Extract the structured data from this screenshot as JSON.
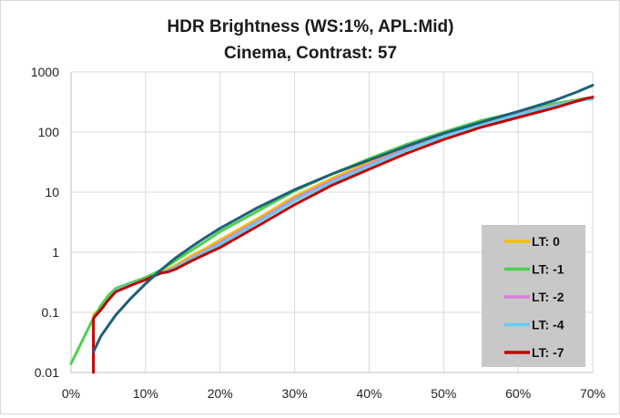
{
  "chart_data": {
    "type": "line",
    "title": "HDR Brightness (WS:1%, APL:Mid)",
    "subtitle": "Cinema, Contrast: 57",
    "x_tick_labels": [
      "0%",
      "10%",
      "20%",
      "30%",
      "40%",
      "50%",
      "60%",
      "70%"
    ],
    "y_tick_labels": [
      "1000",
      "100",
      "10",
      "1",
      "0.1",
      "0.01"
    ],
    "x_unit": "%",
    "xlim": [
      0,
      70
    ],
    "ylim": [
      0.01,
      1000
    ],
    "y_scale": "log",
    "grid": true,
    "legend_position": "bottom-right",
    "series": [
      {
        "name": "LT: 0",
        "color": "#f0c000",
        "x": [
          3,
          4,
          5,
          6,
          8,
          10,
          12,
          14,
          16,
          18,
          20,
          25,
          30,
          35,
          40,
          45,
          50,
          55,
          60,
          65,
          69,
          70
        ],
        "y": [
          0.09,
          0.12,
          0.17,
          0.24,
          0.3,
          0.36,
          0.45,
          0.6,
          0.85,
          1.15,
          1.6,
          3.6,
          8.5,
          17,
          31,
          55,
          95,
          150,
          210,
          290,
          360,
          370
        ]
      },
      {
        "name": "LT: -1",
        "color": "#4dd04d",
        "x": [
          0,
          1,
          2,
          3,
          4,
          5,
          6,
          8,
          10,
          12,
          14,
          16,
          18,
          20,
          25,
          30,
          35,
          40,
          45,
          50,
          55,
          60,
          65,
          69,
          70
        ],
        "y": [
          0.014,
          0.025,
          0.045,
          0.08,
          0.13,
          0.19,
          0.25,
          0.31,
          0.38,
          0.5,
          0.72,
          1.05,
          1.5,
          2.2,
          4.8,
          10.5,
          20,
          36,
          62,
          100,
          155,
          215,
          300,
          360,
          370
        ]
      },
      {
        "name": "LT: -2",
        "color": "#d97fd9",
        "x": [
          3,
          4,
          5,
          6,
          8,
          10,
          12,
          14,
          16,
          18,
          20,
          25,
          30,
          35,
          40,
          45,
          50,
          55,
          60,
          65,
          69,
          70
        ],
        "y": [
          0.08,
          0.11,
          0.16,
          0.23,
          0.29,
          0.35,
          0.44,
          0.56,
          0.78,
          1.05,
          1.45,
          3.3,
          7.8,
          15.5,
          29,
          52,
          88,
          140,
          200,
          280,
          350,
          360
        ]
      },
      {
        "name": "LT: -4",
        "color": "#66ccee",
        "x": [
          3,
          4,
          5,
          6,
          8,
          10,
          12,
          14,
          16,
          18,
          20,
          25,
          30,
          35,
          40,
          45,
          50,
          55,
          60,
          65,
          69,
          70
        ],
        "y": [
          0.08,
          0.11,
          0.16,
          0.23,
          0.29,
          0.35,
          0.44,
          0.55,
          0.75,
          1.0,
          1.35,
          3.1,
          7.2,
          14.5,
          27,
          50,
          85,
          135,
          195,
          275,
          345,
          355
        ]
      },
      {
        "name": "LT: -7",
        "color": "#c00000",
        "x": [
          3,
          3,
          4,
          5,
          6,
          8,
          10,
          12,
          13,
          14,
          16,
          18,
          20,
          25,
          30,
          35,
          40,
          45,
          50,
          55,
          60,
          65,
          69,
          70
        ],
        "y": [
          0.01,
          0.08,
          0.11,
          0.16,
          0.22,
          0.28,
          0.35,
          0.45,
          0.47,
          0.52,
          0.7,
          0.92,
          1.2,
          2.7,
          6.2,
          13,
          24,
          44,
          75,
          120,
          175,
          255,
          360,
          380
        ]
      },
      {
        "name": "",
        "color": "#1f5f7a",
        "x": [
          3,
          4,
          5,
          6,
          8,
          10,
          12,
          14,
          16,
          18,
          20,
          25,
          30,
          35,
          40,
          45,
          50,
          55,
          60,
          65,
          68,
          70
        ],
        "y": [
          0.022,
          0.04,
          0.06,
          0.09,
          0.17,
          0.3,
          0.5,
          0.8,
          1.2,
          1.75,
          2.5,
          5.5,
          11,
          20,
          34,
          58,
          95,
          145,
          220,
          340,
          470,
          600
        ]
      }
    ]
  }
}
